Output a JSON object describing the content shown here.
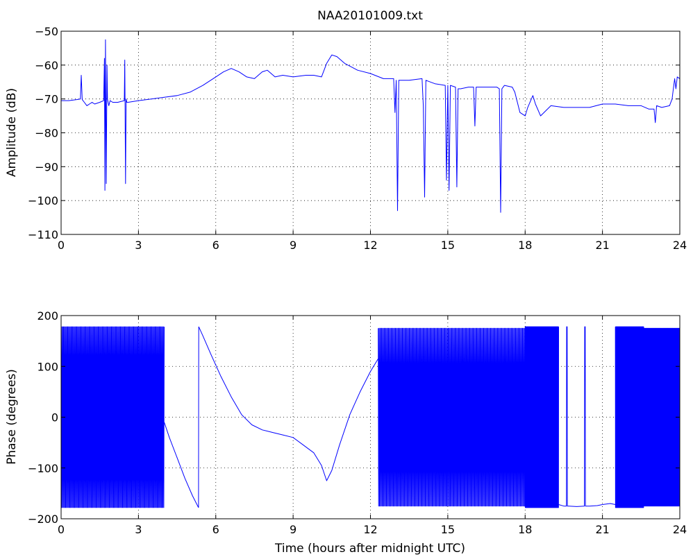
{
  "figure": {
    "title": "NAA20101009.txt",
    "background": "#ffffff",
    "series_color": "#0000ff"
  },
  "chart_data": [
    {
      "type": "line",
      "title": "NAA20101009.txt",
      "xlabel": "",
      "ylabel": "Amplitude (dB)",
      "xlim": [
        0,
        24
      ],
      "ylim": [
        -110,
        -50
      ],
      "xticks": [
        0,
        3,
        6,
        9,
        12,
        15,
        18,
        21,
        24
      ],
      "yticks": [
        -110,
        -100,
        -90,
        -80,
        -70,
        -60,
        -50
      ],
      "grid": true,
      "series": [
        {
          "color": "#0000ff",
          "x": [
            0,
            0.3,
            0.6,
            0.75,
            0.78,
            0.82,
            0.9,
            1.0,
            1.1,
            1.2,
            1.3,
            1.5,
            1.65,
            1.68,
            1.7,
            1.72,
            1.75,
            1.78,
            1.8,
            1.85,
            1.9,
            2.0,
            2.2,
            2.45,
            2.47,
            2.5,
            2.52,
            2.55,
            2.6,
            3.0,
            3.5,
            4.0,
            4.5,
            5.0,
            5.5,
            6.0,
            6.3,
            6.6,
            6.9,
            7.2,
            7.5,
            7.8,
            8.0,
            8.3,
            8.6,
            9.0,
            9.5,
            9.8,
            10.1,
            10.3,
            10.5,
            10.7,
            11.0,
            11.5,
            12.0,
            12.5,
            12.9,
            12.95,
            13.0,
            13.05,
            13.1,
            13.2,
            13.5,
            14.0,
            14.05,
            14.1,
            14.15,
            14.5,
            14.9,
            14.95,
            15.0,
            15.05,
            15.1,
            15.3,
            15.35,
            15.4,
            15.5,
            15.8,
            16.0,
            16.05,
            16.1,
            16.5,
            16.9,
            17.0,
            17.05,
            17.1,
            17.2,
            17.5,
            17.6,
            17.8,
            18.0,
            18.1,
            18.3,
            18.4,
            18.6,
            19.0,
            19.5,
            20.0,
            20.5,
            21.0,
            21.5,
            22.0,
            22.5,
            22.8,
            23.0,
            23.05,
            23.1,
            23.3,
            23.6,
            23.7,
            23.75,
            23.8,
            23.85,
            23.9,
            24.0
          ],
          "y": [
            -70.5,
            -70.5,
            -70.2,
            -70.0,
            -63.0,
            -70.2,
            -71.0,
            -72.0,
            -71.5,
            -71.0,
            -71.5,
            -71.0,
            -70.5,
            -58.0,
            -97.0,
            -52.5,
            -95.0,
            -60.0,
            -70.0,
            -72.0,
            -70.5,
            -71.0,
            -71.0,
            -70.5,
            -58.5,
            -95.0,
            -70.0,
            -71.0,
            -71.0,
            -70.5,
            -70.0,
            -69.5,
            -69.0,
            -68.0,
            -66.0,
            -63.5,
            -62.0,
            -61.0,
            -62.0,
            -63.5,
            -64.0,
            -62.0,
            -61.5,
            -63.5,
            -63.0,
            -63.5,
            -63.0,
            -63.0,
            -63.5,
            -59.5,
            -57.0,
            -57.5,
            -59.5,
            -61.5,
            -62.5,
            -64.0,
            -64.0,
            -74.0,
            -64.5,
            -103.0,
            -64.5,
            -64.5,
            -64.5,
            -64.0,
            -72.0,
            -99.0,
            -64.5,
            -65.5,
            -66.0,
            -94.0,
            -66.0,
            -97.0,
            -66.0,
            -66.5,
            -96.0,
            -67.0,
            -67.0,
            -66.5,
            -66.5,
            -78.0,
            -66.5,
            -66.5,
            -66.5,
            -67.0,
            -103.5,
            -67.0,
            -66.0,
            -66.5,
            -68.0,
            -74.0,
            -75.0,
            -72.5,
            -69.0,
            -71.5,
            -75.0,
            -72.0,
            -72.5,
            -72.5,
            -72.5,
            -71.5,
            -71.5,
            -72.0,
            -72.0,
            -73.0,
            -73.0,
            -77.0,
            -72.0,
            -72.5,
            -72.0,
            -70.0,
            -67.0,
            -64.0,
            -67.0,
            -63.5,
            -64.0
          ]
        }
      ]
    },
    {
      "type": "line",
      "title": "",
      "xlabel": "Time (hours after midnight UTC)",
      "ylabel": "Phase (degrees)",
      "xlim": [
        0,
        24
      ],
      "ylim": [
        -200,
        200
      ],
      "xticks": [
        0,
        3,
        6,
        9,
        12,
        15,
        18,
        21,
        24
      ],
      "yticks": [
        -200,
        -100,
        0,
        100,
        200
      ],
      "grid": true,
      "segments": [
        {
          "type": "oscillation",
          "x_start": 0.0,
          "x_end": 4.0,
          "cycles": 125,
          "amplitude": 178,
          "center": 0
        },
        {
          "type": "curve",
          "x": [
            4.0,
            4.2,
            4.5,
            4.8,
            5.1,
            5.33
          ],
          "y": [
            -10,
            -40,
            -80,
            -120,
            -155,
            -178
          ]
        },
        {
          "type": "curve",
          "x": [
            5.33,
            5.34
          ],
          "y": [
            -178,
            178
          ]
        },
        {
          "type": "curve",
          "x": [
            5.34,
            5.5,
            5.8,
            6.2,
            6.6,
            7.0,
            7.4,
            7.8,
            8.2,
            8.6,
            9.0,
            9.4,
            9.8,
            10.1,
            10.3,
            10.5,
            10.8,
            11.2,
            11.6,
            12.0,
            12.3
          ],
          "y": [
            178,
            160,
            125,
            80,
            40,
            5,
            -15,
            -25,
            -30,
            -35,
            -40,
            -55,
            -70,
            -95,
            -125,
            -105,
            -55,
            5,
            50,
            90,
            115
          ]
        },
        {
          "type": "oscillation",
          "x_start": 12.3,
          "x_end": 18.0,
          "cycles": 170,
          "amplitude": 175,
          "center": 0
        },
        {
          "type": "oscillation",
          "x_start": 18.0,
          "x_end": 19.3,
          "cycles": 140,
          "amplitude": 178,
          "center": 0
        },
        {
          "type": "curve",
          "x": [
            19.3,
            19.5,
            19.6,
            19.61,
            19.62,
            19.63,
            19.64,
            19.7,
            20.0,
            20.3,
            20.31,
            20.32,
            20.33,
            20.34,
            20.5,
            20.8,
            21.0,
            21.3,
            21.5
          ],
          "y": [
            -172,
            -175,
            -175,
            178,
            178,
            178,
            -175,
            -175,
            -176,
            -175,
            178,
            178,
            178,
            -175,
            -175,
            -174,
            -172,
            -170,
            -172
          ]
        },
        {
          "type": "oscillation",
          "x_start": 21.5,
          "x_end": 22.6,
          "cycles": 110,
          "amplitude": 178,
          "center": 0
        },
        {
          "type": "oscillation",
          "x_start": 22.6,
          "x_end": 24.0,
          "cycles": 55,
          "amplitude": 175,
          "center": 0
        }
      ]
    }
  ]
}
